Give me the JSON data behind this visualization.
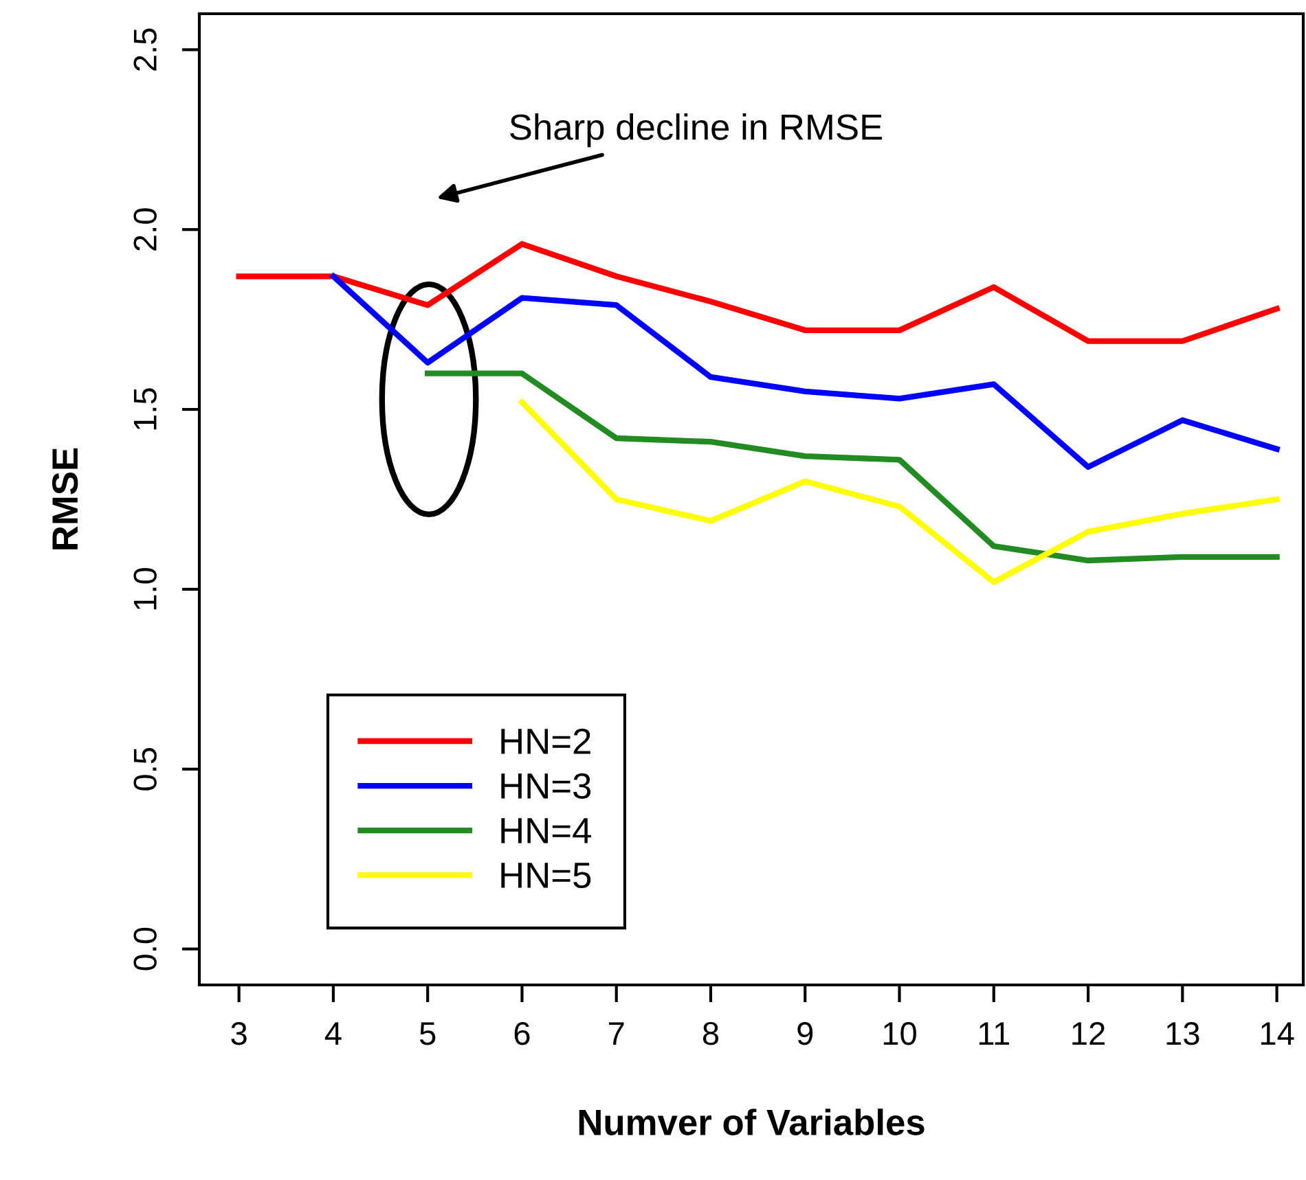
{
  "chart_data": {
    "type": "line",
    "xlabel": "Numver of Variables",
    "ylabel": "RMSE",
    "xlim": [
      2.58,
      14.28
    ],
    "ylim": [
      -0.1,
      2.6
    ],
    "xticks": [
      3,
      4,
      5,
      6,
      7,
      8,
      9,
      10,
      11,
      12,
      13,
      14
    ],
    "yticks": [
      {
        "value": 0,
        "label": "0.0"
      },
      0.5,
      {
        "value": 1,
        "label": "1.0"
      },
      1.5,
      {
        "value": 2,
        "label": "2.0"
      },
      2.5
    ],
    "grid": false,
    "legend": "bottom left",
    "marker": "none",
    "line_style": "solid",
    "series": [
      {
        "name": "HN=2",
        "color": "#ff0000",
        "x": [
          3,
          4,
          5,
          6,
          7,
          8,
          9,
          10,
          11,
          12,
          13,
          14
        ],
        "values": [
          1.87,
          1.87,
          1.79,
          1.96,
          1.87,
          1.8,
          1.72,
          1.72,
          1.84,
          1.69,
          1.69,
          1.78
        ]
      },
      {
        "name": "HN=3",
        "color": "#0000ff",
        "x": [
          4,
          5,
          6,
          7,
          8,
          9,
          10,
          11,
          12,
          13,
          14
        ],
        "values": [
          1.87,
          1.63,
          1.81,
          1.79,
          1.59,
          1.55,
          1.53,
          1.57,
          1.34,
          1.47,
          1.39
        ]
      },
      {
        "name": "HN=4",
        "color": "#228b22",
        "x": [
          5,
          6,
          7,
          8,
          9,
          10,
          11,
          12,
          13,
          14
        ],
        "values": [
          1.6,
          1.6,
          1.42,
          1.41,
          1.37,
          1.36,
          1.12,
          1.08,
          1.09,
          1.09
        ]
      },
      {
        "name": "HN=5",
        "color": "#ffff00",
        "x": [
          6,
          7,
          8,
          9,
          10,
          11,
          12,
          13,
          14
        ],
        "values": [
          1.52,
          1.25,
          1.19,
          1.3,
          1.23,
          1.02,
          1.16,
          1.21,
          1.25
        ]
      }
    ],
    "annotations": [
      "Sharp decline in RMSE"
    ]
  }
}
